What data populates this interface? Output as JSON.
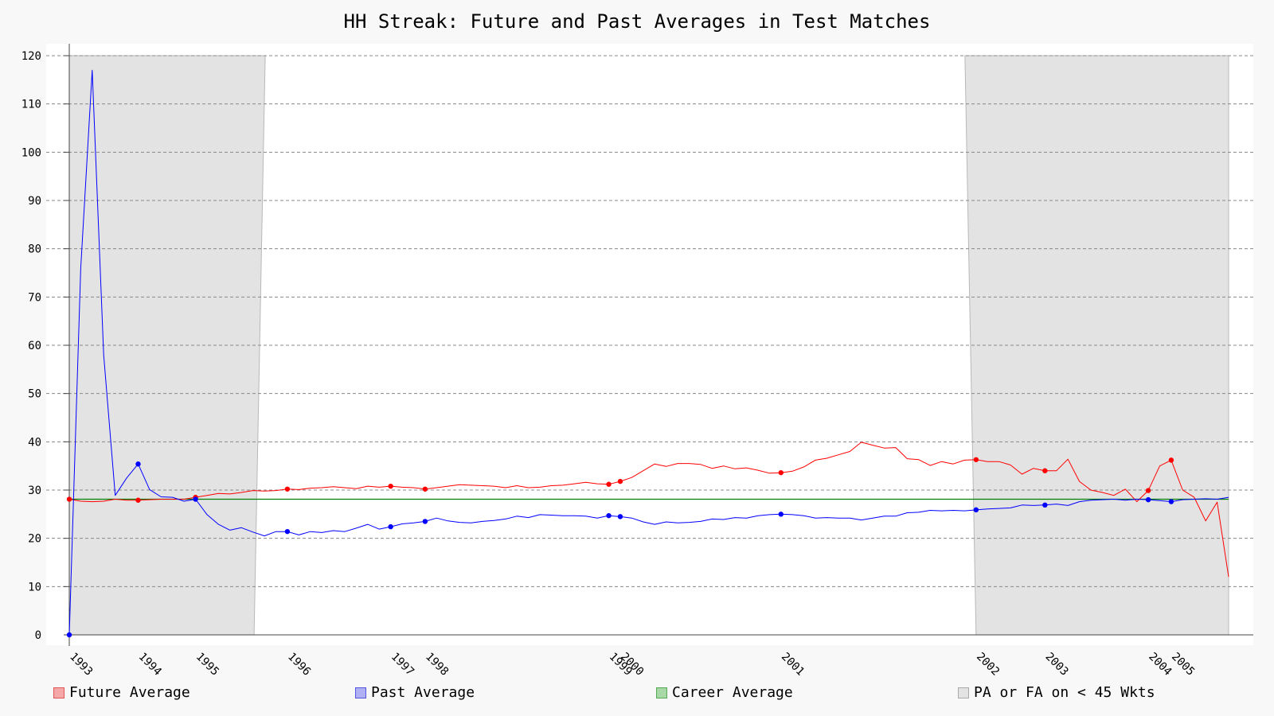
{
  "chart_data": {
    "type": "line",
    "title": "HH Streak: Future and Past Averages in Test Matches",
    "ylim": [
      0,
      120
    ],
    "yticks": [
      0,
      10,
      20,
      30,
      40,
      50,
      60,
      70,
      80,
      90,
      100,
      110,
      120
    ],
    "grid": true,
    "legend_placement": "bottom",
    "colors": {
      "future": "#ff0000",
      "past": "#0000ff",
      "career": "#008000",
      "shade": "#e3e3e3"
    },
    "xticks": [
      {
        "label": "1993",
        "x": 0
      },
      {
        "label": "1994",
        "x": 6
      },
      {
        "label": "1995",
        "x": 11
      },
      {
        "label": "1996",
        "x": 19
      },
      {
        "label": "1997",
        "x": 28
      },
      {
        "label": "1998",
        "x": 31
      },
      {
        "label": "1999",
        "x": 47
      },
      {
        "label": "2000",
        "x": 48
      },
      {
        "label": "2001",
        "x": 62
      },
      {
        "label": "2002",
        "x": 79
      },
      {
        "label": "2003",
        "x": 85
      },
      {
        "label": "2004",
        "x": 94
      },
      {
        "label": "2005",
        "x": 96
      }
    ],
    "career_average": 28.1,
    "shaded_regions": [
      [
        0,
        16.1
      ],
      [
        79,
        101
      ]
    ],
    "series": [
      {
        "name": "Future Average",
        "values": [
          28.1,
          27.7,
          27.6,
          27.7,
          28.1,
          27.9,
          27.9,
          28.0,
          28.1,
          28.1,
          28.1,
          28.5,
          28.9,
          29.3,
          29.2,
          29.5,
          29.9,
          29.8,
          29.9,
          30.2,
          30.1,
          30.4,
          30.5,
          30.7,
          30.5,
          30.3,
          30.8,
          30.6,
          30.8,
          30.6,
          30.5,
          30.2,
          30.5,
          30.8,
          31.1,
          31.0,
          30.9,
          30.8,
          30.5,
          30.9,
          30.5,
          30.6,
          30.9,
          31.0,
          31.3,
          31.6,
          31.3,
          31.2,
          31.8,
          32.6,
          34.0,
          35.4,
          34.9,
          35.5,
          35.5,
          35.3,
          34.5,
          35.0,
          34.4,
          34.6,
          34.1,
          33.5,
          33.6,
          33.9,
          34.8,
          36.2,
          36.6,
          37.3,
          38.0,
          39.9,
          39.3,
          38.7,
          38.8,
          36.5,
          36.3,
          35.1,
          35.9,
          35.4,
          36.2,
          36.3,
          35.9,
          35.9,
          35.2,
          33.3,
          34.5,
          34.0,
          34.0,
          36.4,
          31.8,
          30.0,
          29.5,
          28.9,
          30.2,
          27.6,
          29.9,
          35.0,
          36.2,
          30.0,
          28.5,
          23.6,
          27.5,
          12.0
        ],
        "markers": [
          0,
          6,
          11,
          19,
          28,
          31,
          47,
          48,
          62,
          79,
          85,
          94,
          96
        ]
      },
      {
        "name": "Past Average",
        "values": [
          0.0,
          76.0,
          117.0,
          58.0,
          28.9,
          32.5,
          35.4,
          30.1,
          28.6,
          28.5,
          27.7,
          28.1,
          24.9,
          22.9,
          21.7,
          22.2,
          21.3,
          20.5,
          21.4,
          21.4,
          20.7,
          21.4,
          21.2,
          21.6,
          21.4,
          22.1,
          22.9,
          21.9,
          22.4,
          23.0,
          23.2,
          23.5,
          24.2,
          23.6,
          23.3,
          23.2,
          23.5,
          23.7,
          24.0,
          24.6,
          24.3,
          24.9,
          24.8,
          24.7,
          24.7,
          24.6,
          24.2,
          24.7,
          24.5,
          24.2,
          23.4,
          22.9,
          23.4,
          23.2,
          23.3,
          23.5,
          24.0,
          23.9,
          24.3,
          24.2,
          24.7,
          24.9,
          25.0,
          24.9,
          24.7,
          24.2,
          24.3,
          24.2,
          24.2,
          23.8,
          24.2,
          24.6,
          24.6,
          25.3,
          25.4,
          25.8,
          25.7,
          25.8,
          25.7,
          25.9,
          26.1,
          26.2,
          26.3,
          26.9,
          26.8,
          26.9,
          27.1,
          26.8,
          27.6,
          27.9,
          28.0,
          28.1,
          27.9,
          28.1,
          28.0,
          27.8,
          27.6,
          28.0,
          28.1,
          28.2,
          28.1,
          28.5
        ],
        "markers": [
          0,
          6,
          11,
          19,
          28,
          31,
          47,
          48,
          62,
          79,
          85,
          94,
          96
        ]
      },
      {
        "name": "Career Average"
      }
    ],
    "legend": [
      "Future Average",
      "Past Average",
      "Career Average",
      "PA or FA on < 45 Wkts"
    ]
  }
}
